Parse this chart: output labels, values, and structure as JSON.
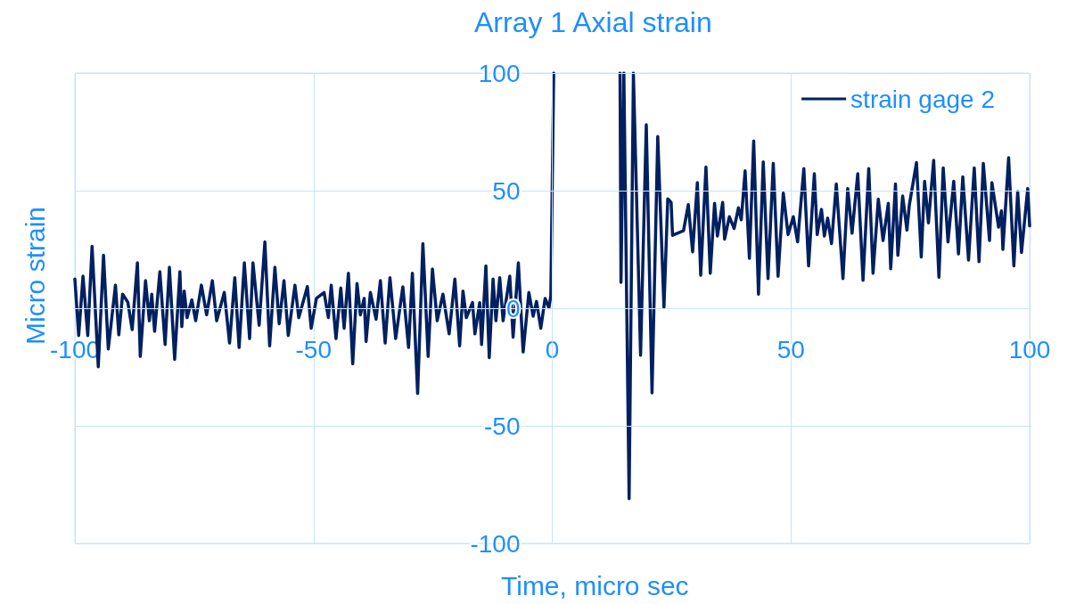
{
  "chart_data": {
    "type": "line",
    "title": "Array 1 Axial strain",
    "xlabel": "Time, micro sec",
    "ylabel": "Micro strain",
    "xlim": [
      -100,
      100
    ],
    "xticks": [
      -100,
      -50,
      0,
      50,
      100
    ],
    "ylim": [
      -100,
      100
    ],
    "yticks": [
      -100,
      -50,
      0,
      50,
      100
    ],
    "grid": true,
    "legend": "top right",
    "marker": "none",
    "line_style": "solid",
    "series": [
      {
        "name": "strain gage 2",
        "color": "#002060",
        "x": [
          -100,
          -99.2,
          -98.3,
          -97.3,
          -96.4,
          -95.1,
          -94.0,
          -93.0,
          -91.5,
          -90.8,
          -90.0,
          -88.9,
          -88.0,
          -86.9,
          -86.3,
          -85.2,
          -84.4,
          -83.9,
          -83.3,
          -82.2,
          -81.1,
          -80.2,
          -79.1,
          -78.0,
          -77.6,
          -77.1,
          -76.5,
          -75.5,
          -74.7,
          -73.5,
          -72.4,
          -71.2,
          -70.3,
          -68.7,
          -67.6,
          -66.5,
          -65.6,
          -64.5,
          -63.4,
          -62.7,
          -61.4,
          -60.2,
          -59.2,
          -58.1,
          -57.2,
          -56.2,
          -55.3,
          -53.9,
          -53.1,
          -51.3,
          -50.5,
          -49.4,
          -47.8,
          -46.9,
          -46.3,
          -45.3,
          -44.3,
          -43.6,
          -42.7,
          -41.8,
          -40.9,
          -40.2,
          -39.4,
          -39.0,
          -38.1,
          -36.9,
          -36.0,
          -35.0,
          -34.0,
          -32.8,
          -31.3,
          -30.1,
          -29.3,
          -28.2,
          -27.1,
          -26.0,
          -25.1,
          -24.1,
          -22.9,
          -21.6,
          -20.4,
          -19.4,
          -18.7,
          -18.0,
          -16.7,
          -16.2,
          -15.2,
          -14.8,
          -13.9,
          -13.2,
          -12.4,
          -11.8,
          -11.0,
          -10.3,
          -8.9,
          -8.2,
          -7.1,
          -6.1,
          -4.9,
          -4.0,
          -3.3,
          -2.4,
          -1.5,
          -0.7,
          -0.3,
          0.3,
          7,
          14.2,
          14.4,
          15.0,
          16.1,
          17.0,
          18.5,
          19.7,
          20.9,
          22.1,
          23.4,
          24.2,
          24.9,
          25.2,
          27.5,
          28.5,
          29.4,
          30.4,
          31.1,
          32.2,
          33.1,
          34.0,
          34.6,
          35.7,
          36.1,
          37.1,
          38.1,
          39.0,
          39.6,
          40.4,
          41.3,
          42.2,
          43.2,
          44.2,
          45.2,
          46.3,
          47.3,
          48.4,
          49.4,
          50.5,
          51.4,
          52.7,
          53.7,
          54.9,
          55.5,
          56.4,
          57.0,
          57.7,
          58.5,
          59.5,
          60.9,
          61.9,
          62.8,
          64.0,
          65.1,
          66.3,
          67.2,
          68.3,
          69.3,
          70.4,
          70.9,
          71.9,
          72.4,
          73.4,
          74.3,
          74.8,
          76.3,
          77.3,
          78.0,
          78.8,
          79.9,
          81.0,
          81.9,
          82.9,
          84.1,
          85.1,
          86.0,
          87.2,
          88.4,
          89.4,
          90.3,
          91.6,
          92.1,
          93.5,
          94.1,
          94.4,
          95.6,
          96.7,
          97.5,
          98.3,
          99.6,
          100
        ],
        "values": [
          12.4,
          -11.6,
          13.6,
          -11.6,
          26.3,
          -24.9,
          22.5,
          -17.3,
          9.8,
          -11.3,
          6,
          2.5,
          -9.1,
          19.3,
          -20.5,
          11.7,
          -5.3,
          6,
          -9.8,
          15.5,
          -15.4,
          17.4,
          -21.7,
          15.5,
          -7.8,
          7.3,
          -4,
          3.5,
          -5.3,
          9.8,
          -2.8,
          11.7,
          -5.3,
          6.7,
          -14.8,
          13,
          -16.7,
          19.3,
          -12.9,
          19.3,
          -7.2,
          28.2,
          -16,
          17.4,
          -6.6,
          11.7,
          -11.6,
          9.8,
          -4,
          9.2,
          -8.5,
          4.2,
          6.7,
          -4,
          9.8,
          -12.9,
          8.6,
          -8.5,
          14.9,
          -23.6,
          10.5,
          -2.8,
          4.2,
          -14.1,
          6.7,
          -4.7,
          11.7,
          -14.8,
          13,
          -12.9,
          9.1,
          -16.7,
          14.9,
          -36.2,
          27.5,
          -20.5,
          16.7,
          -5.3,
          6,
          -10.9,
          12.4,
          -16,
          7.3,
          -4,
          2.4,
          -10.9,
          2.4,
          -15.4,
          18,
          -21,
          12.4,
          -5.3,
          13,
          -5.3,
          13.6,
          -12.3,
          19.3,
          -18.6,
          6.7,
          -3.4,
          2.9,
          -8.5,
          4.2,
          0.2,
          5.3,
          100,
          null,
          100,
          11,
          100,
          -81,
          100,
          -20,
          78,
          -36,
          73,
          0.4,
          46.5,
          45,
          31,
          33,
          44,
          24,
          53.4,
          14,
          60,
          14.9,
          44.6,
          30.7,
          45,
          29.4,
          38.9,
          33.9,
          42.7,
          37.6,
          58.4,
          21.2,
          71.1,
          6,
          62.2,
          12.6,
          61.6,
          13.6,
          49,
          31.3,
          38.9,
          28.2,
          59.4,
          18,
          57.2,
          31.3,
          42,
          30.7,
          38.3,
          27.5,
          52.8,
          12.6,
          50.9,
          31.9,
          57.2,
          11.9,
          59.4,
          14.9,
          46.4,
          28.8,
          44.6,
          16.8,
          52.8,
          22.5,
          47.7,
          33.2,
          43.9,
          61.9,
          21.8,
          54,
          36.3,
          62.9,
          13.2,
          59.7,
          28.2,
          54,
          23.1,
          55.9,
          20.5,
          59.7,
          19.8,
          61.6,
          28.8,
          53.4,
          34.5,
          41.4,
          25,
          64,
          18,
          49.6,
          23.7,
          50.9,
          35
        ]
      }
    ]
  }
}
